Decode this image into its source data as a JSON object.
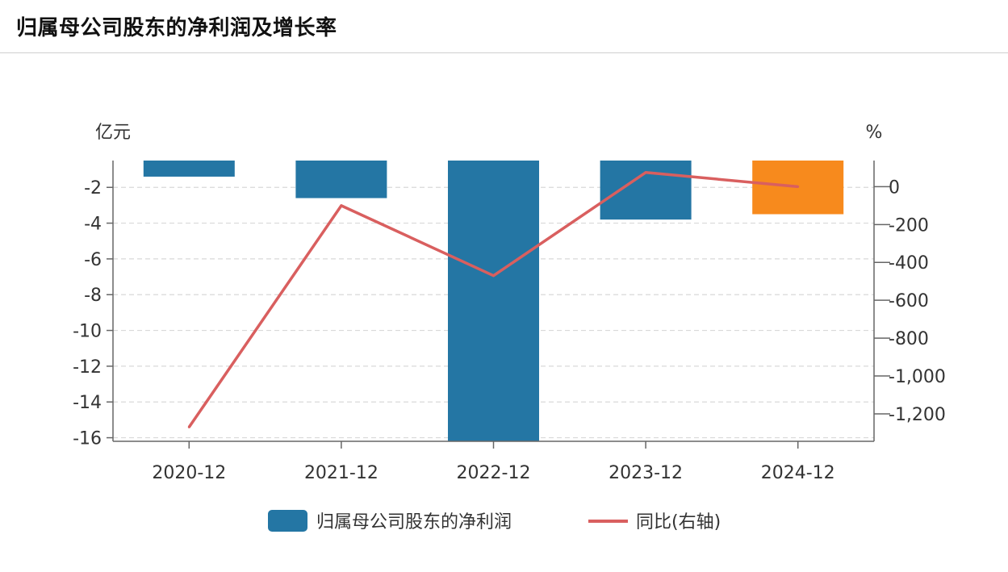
{
  "page": {
    "title": "归属母公司股东的净利润及增长率"
  },
  "chart_data": {
    "type": "bar",
    "categories": [
      "2020-12",
      "2021-12",
      "2022-12",
      "2023-12",
      "2024-12"
    ],
    "series": [
      {
        "name": "归属母公司股东的净利润",
        "type": "bar",
        "axis": "left",
        "values": [
          -1.4,
          -2.6,
          -16.2,
          -3.8,
          -3.5
        ],
        "color": "#2476a4",
        "point_colors": [
          "#2476a4",
          "#2476a4",
          "#2476a4",
          "#2476a4",
          "#f78a1d"
        ]
      },
      {
        "name": "同比(右轴)",
        "type": "line",
        "axis": "right",
        "values": [
          -1270,
          -100,
          -470,
          75,
          0
        ],
        "color": "#d95f5f"
      }
    ],
    "y_left": {
      "unit": "亿元",
      "range": [
        -16.2,
        -0.5
      ],
      "ticks": [
        -2,
        -4,
        -6,
        -8,
        -10,
        -12,
        -14,
        -16
      ]
    },
    "y_right": {
      "unit": "%",
      "range": [
        -1345,
        138
      ],
      "ticks": [
        0,
        -200,
        -400,
        -600,
        -800,
        -1000,
        -1200
      ],
      "tick_labels": [
        "0",
        "-200",
        "-400",
        "-600",
        "-800",
        "-1,000",
        "-1,200"
      ]
    },
    "grid": true,
    "legend": "bottom"
  }
}
